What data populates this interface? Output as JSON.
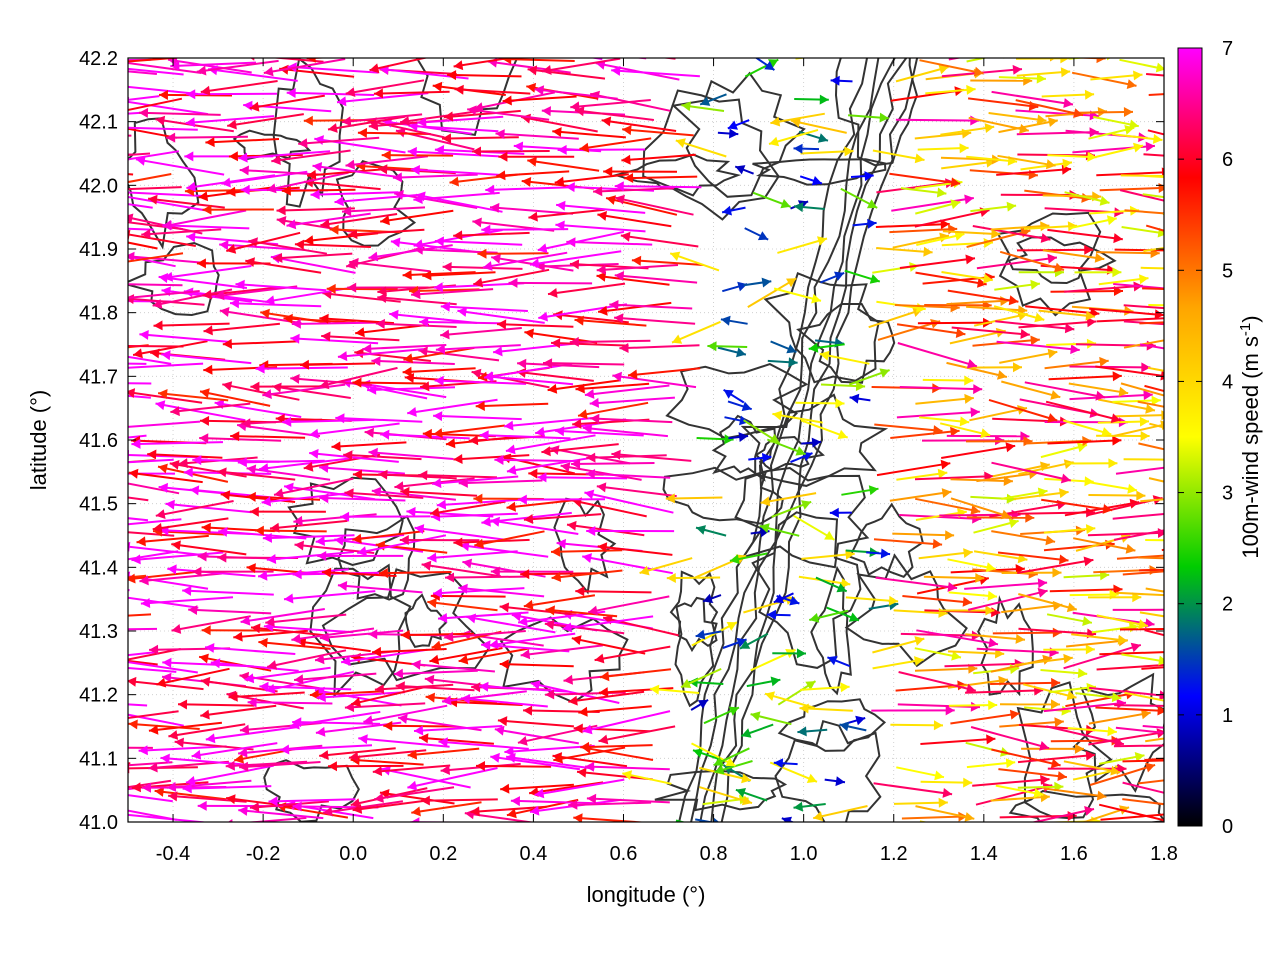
{
  "chart_data": {
    "type": "vector-field",
    "title": "",
    "xlabel": "longitude (°)",
    "ylabel": "latitude (°)",
    "xlim": [
      -0.5,
      1.8
    ],
    "ylim": [
      41.0,
      42.2
    ],
    "xticks": [
      "-0.4",
      "-0.2",
      "0.0",
      "0.2",
      "0.4",
      "0.6",
      "0.8",
      "1.0",
      "1.2",
      "1.4",
      "1.6",
      "1.8"
    ],
    "xtick_values": [
      -0.4,
      -0.2,
      0.0,
      0.2,
      0.4,
      0.6,
      0.8,
      1.0,
      1.2,
      1.4,
      1.6,
      1.8
    ],
    "yticks": [
      "41.0",
      "41.1",
      "41.2",
      "41.3",
      "41.4",
      "41.5",
      "41.6",
      "41.7",
      "41.8",
      "41.9",
      "42.0",
      "42.1",
      "42.2"
    ],
    "ytick_values": [
      41.0,
      41.1,
      41.2,
      41.3,
      41.4,
      41.5,
      41.6,
      41.7,
      41.8,
      41.9,
      42.0,
      42.1,
      42.2
    ],
    "grid": true,
    "colorbar": {
      "label_main": "100m-wind speed (m s",
      "label_sup": "-1",
      "label_end": ")",
      "range": [
        0,
        7
      ],
      "ticks": [
        "0",
        "1",
        "2",
        "3",
        "4",
        "5",
        "6",
        "7"
      ],
      "tick_values": [
        0,
        1,
        2,
        3,
        4,
        5,
        6,
        7
      ],
      "colors": [
        "#000000",
        "#0000ff",
        "#00cc00",
        "#ffff00",
        "#ffa500",
        "#ff0000",
        "#ff00ff"
      ]
    },
    "wind_field_description": {
      "west_region": {
        "lon_range": [
          -0.5,
          0.7
        ],
        "direction": "westward",
        "speed": 7
      },
      "east_region": {
        "lon_range": [
          1.15,
          1.8
        ],
        "direction": "eastward",
        "speed": 4.5
      },
      "divergence_zone": {
        "lon_range": [
          0.9,
          1.15
        ],
        "direction": "mixed",
        "speed": 1.5
      }
    },
    "contour_color": "#333333"
  }
}
